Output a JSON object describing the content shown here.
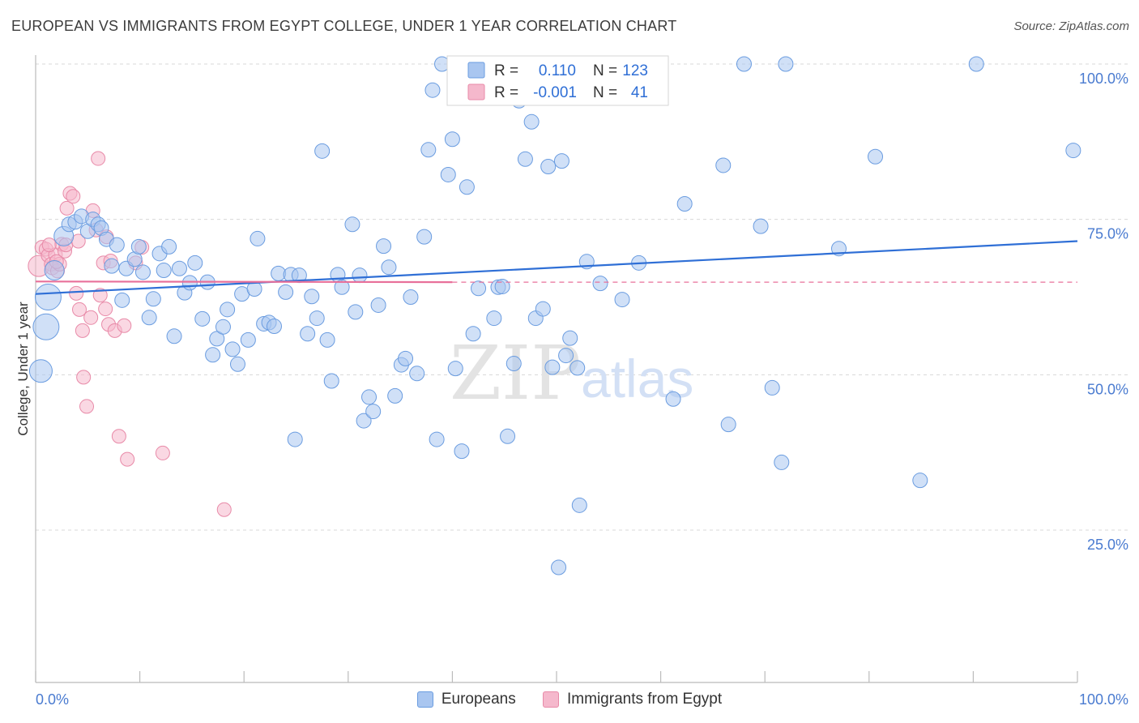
{
  "header": {
    "title": "EUROPEAN VS IMMIGRANTS FROM EGYPT COLLEGE, UNDER 1 YEAR CORRELATION CHART",
    "source": "Source: ZipAtlas.com"
  },
  "watermark": {
    "zip": "ZIP",
    "atlas": "atlas"
  },
  "legend_box": {
    "rows": [
      {
        "r_label": "R =",
        "r_value": "0.110",
        "n_label": "N =",
        "n_value": "123"
      },
      {
        "r_label": "R =",
        "r_value": "-0.001",
        "n_label": "N =",
        "n_value": "41"
      }
    ]
  },
  "bottom_legend": {
    "series1": "Europeans",
    "series2": "Immigrants from Egypt"
  },
  "colors": {
    "blue_fill": "#a9c6f0",
    "blue_stroke": "#6a9ce0",
    "blue_line": "#2f6fd6",
    "pink_fill": "#f5b8cc",
    "pink_stroke": "#e88aa8",
    "pink_line": "#e8709a",
    "grid": "#d8d8d8",
    "tick_text": "#4a7bd0"
  },
  "chart_data": {
    "type": "scatter",
    "title": "EUROPEAN VS IMMIGRANTS FROM EGYPT COLLEGE, UNDER 1 YEAR CORRELATION CHART",
    "xlabel": "",
    "ylabel": "College, Under 1 year",
    "xlim": [
      0,
      100
    ],
    "ylim": [
      0,
      102
    ],
    "x_tick_labels": [
      "0.0%",
      "100.0%"
    ],
    "y_ticks": [
      25,
      50,
      75,
      100
    ],
    "y_tick_labels": [
      "25.0%",
      "50.0%",
      "75.0%",
      "100.0%"
    ],
    "series": [
      {
        "name": "Europeans",
        "r": 0.11,
        "n": 123,
        "trend": {
          "x": [
            0,
            100
          ],
          "y": [
            63.0,
            71.5
          ],
          "extrapolated_from": null
        },
        "points": [
          [
            1.2,
            62.5
          ],
          [
            1.0,
            57.7
          ],
          [
            0.5,
            50.6
          ],
          [
            1.8,
            66.8
          ],
          [
            2.7,
            72.3
          ],
          [
            3.2,
            74.2
          ],
          [
            3.8,
            74.6
          ],
          [
            4.4,
            75.5
          ],
          [
            5.0,
            73.1
          ],
          [
            5.5,
            75.0
          ],
          [
            6.0,
            74.2
          ],
          [
            6.3,
            73.6
          ],
          [
            6.8,
            71.8
          ],
          [
            7.3,
            67.5
          ],
          [
            7.8,
            70.9
          ],
          [
            8.3,
            62.0
          ],
          [
            8.7,
            67.1
          ],
          [
            9.5,
            68.6
          ],
          [
            9.9,
            70.6
          ],
          [
            10.3,
            66.5
          ],
          [
            10.9,
            59.2
          ],
          [
            11.3,
            62.2
          ],
          [
            11.9,
            69.5
          ],
          [
            12.3,
            66.8
          ],
          [
            12.8,
            70.6
          ],
          [
            13.3,
            56.2
          ],
          [
            13.8,
            67.1
          ],
          [
            14.3,
            63.2
          ],
          [
            14.8,
            64.8
          ],
          [
            15.3,
            68.0
          ],
          [
            16.0,
            59.0
          ],
          [
            16.5,
            64.9
          ],
          [
            17.0,
            53.2
          ],
          [
            17.4,
            55.8
          ],
          [
            18.0,
            57.7
          ],
          [
            18.4,
            60.5
          ],
          [
            18.9,
            54.1
          ],
          [
            19.4,
            51.7
          ],
          [
            19.8,
            63.0
          ],
          [
            20.4,
            55.6
          ],
          [
            21.0,
            63.8
          ],
          [
            21.3,
            71.9
          ],
          [
            21.9,
            58.2
          ],
          [
            22.4,
            58.4
          ],
          [
            22.9,
            57.8
          ],
          [
            23.3,
            66.3
          ],
          [
            24.0,
            63.3
          ],
          [
            24.5,
            66.1
          ],
          [
            24.9,
            39.6
          ],
          [
            25.3,
            66.0
          ],
          [
            26.1,
            56.6
          ],
          [
            26.5,
            62.6
          ],
          [
            27.0,
            59.1
          ],
          [
            27.5,
            86.0
          ],
          [
            28.0,
            55.6
          ],
          [
            28.4,
            49.0
          ],
          [
            29.0,
            66.1
          ],
          [
            29.4,
            64.1
          ],
          [
            30.4,
            74.2
          ],
          [
            30.7,
            60.1
          ],
          [
            31.1,
            66.0
          ],
          [
            31.5,
            42.6
          ],
          [
            32.0,
            46.4
          ],
          [
            32.4,
            44.1
          ],
          [
            32.9,
            61.2
          ],
          [
            33.4,
            70.7
          ],
          [
            33.9,
            67.3
          ],
          [
            34.5,
            46.6
          ],
          [
            35.1,
            51.6
          ],
          [
            35.5,
            52.6
          ],
          [
            36.0,
            62.5
          ],
          [
            36.6,
            50.2
          ],
          [
            37.3,
            72.2
          ],
          [
            37.7,
            86.2
          ],
          [
            38.1,
            95.8
          ],
          [
            38.5,
            39.6
          ],
          [
            39.0,
            100.0
          ],
          [
            39.6,
            82.2
          ],
          [
            40.0,
            87.9
          ],
          [
            40.3,
            51.0
          ],
          [
            40.9,
            37.7
          ],
          [
            41.4,
            80.2
          ],
          [
            42.0,
            56.6
          ],
          [
            42.5,
            63.9
          ],
          [
            42.9,
            99.9
          ],
          [
            43.4,
            98.8
          ],
          [
            44.0,
            59.1
          ],
          [
            44.4,
            64.1
          ],
          [
            44.8,
            64.2
          ],
          [
            45.3,
            40.1
          ],
          [
            45.9,
            51.8
          ],
          [
            46.4,
            94.1
          ],
          [
            47.0,
            84.7
          ],
          [
            47.6,
            90.7
          ],
          [
            48.0,
            59.1
          ],
          [
            48.7,
            60.6
          ],
          [
            49.2,
            83.5
          ],
          [
            49.6,
            51.2
          ],
          [
            50.2,
            19.0
          ],
          [
            50.5,
            84.4
          ],
          [
            50.9,
            53.1
          ],
          [
            51.3,
            55.9
          ],
          [
            52.0,
            51.1
          ],
          [
            52.2,
            29.0
          ],
          [
            52.9,
            68.2
          ],
          [
            54.2,
            64.7
          ],
          [
            56.3,
            62.1
          ],
          [
            57.6,
            100.0
          ],
          [
            57.9,
            68.0
          ],
          [
            61.2,
            46.1
          ],
          [
            62.3,
            77.5
          ],
          [
            66.0,
            83.7
          ],
          [
            66.5,
            42.0
          ],
          [
            68.0,
            100.0
          ],
          [
            69.6,
            73.9
          ],
          [
            70.7,
            47.9
          ],
          [
            71.6,
            35.9
          ],
          [
            72.0,
            100.0
          ],
          [
            77.1,
            70.3
          ],
          [
            80.6,
            85.1
          ],
          [
            84.9,
            33.0
          ],
          [
            90.3,
            100.0
          ],
          [
            99.6,
            86.1
          ]
        ]
      },
      {
        "name": "Immigrants from Egypt",
        "r": -0.001,
        "n": 41,
        "trend": {
          "x": [
            0,
            40
          ],
          "y": [
            65.0,
            64.9
          ],
          "dashed_extension_to": 100
        },
        "points": [
          [
            0.3,
            67.5
          ],
          [
            0.6,
            70.5
          ],
          [
            1.0,
            70.2
          ],
          [
            1.2,
            69.2
          ],
          [
            1.5,
            67.8
          ],
          [
            1.6,
            67.2
          ],
          [
            1.9,
            69.3
          ],
          [
            2.1,
            66.7
          ],
          [
            2.3,
            67.8
          ],
          [
            2.5,
            71.0
          ],
          [
            2.8,
            69.9
          ],
          [
            3.0,
            76.8
          ],
          [
            3.3,
            79.2
          ],
          [
            3.6,
            78.7
          ],
          [
            3.9,
            63.1
          ],
          [
            4.2,
            60.5
          ],
          [
            4.5,
            57.1
          ],
          [
            4.6,
            49.6
          ],
          [
            4.9,
            44.9
          ],
          [
            5.3,
            59.2
          ],
          [
            5.5,
            76.4
          ],
          [
            5.8,
            73.3
          ],
          [
            6.0,
            84.8
          ],
          [
            6.2,
            62.8
          ],
          [
            6.5,
            68.0
          ],
          [
            6.7,
            60.6
          ],
          [
            6.8,
            72.2
          ],
          [
            7.0,
            58.1
          ],
          [
            7.2,
            68.3
          ],
          [
            7.6,
            57.1
          ],
          [
            8.0,
            40.1
          ],
          [
            8.5,
            57.9
          ],
          [
            8.8,
            36.4
          ],
          [
            9.6,
            68.0
          ],
          [
            10.2,
            70.5
          ],
          [
            12.2,
            37.4
          ],
          [
            18.1,
            28.3
          ],
          [
            2.9,
            70.9
          ],
          [
            4.1,
            71.5
          ],
          [
            1.3,
            70.9
          ],
          [
            2.0,
            68.2
          ]
        ]
      }
    ]
  }
}
